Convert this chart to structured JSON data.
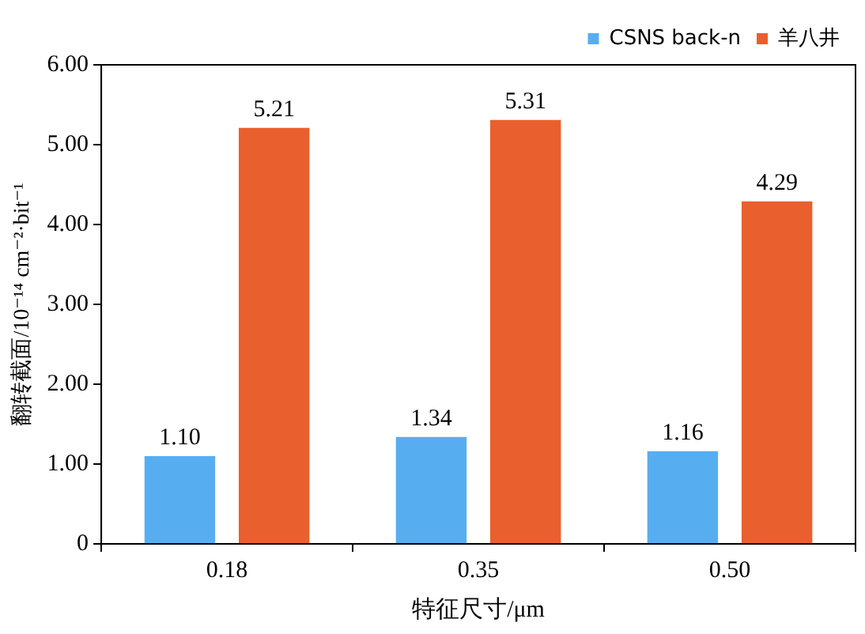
{
  "chart_data": {
    "type": "bar",
    "xlabel": "特征尺寸/μm",
    "ylabel": "翻转截面/10⁻¹⁴ cm⁻²·bit⁻¹",
    "categories": [
      "0.18",
      "0.35",
      "0.50"
    ],
    "series": [
      {
        "name": "CSNS back-n",
        "color": "#56aef0",
        "values": [
          1.1,
          1.34,
          1.16
        ],
        "value_labels": [
          "1.10",
          "1.34",
          "1.16"
        ]
      },
      {
        "name": "羊八井",
        "color": "#ea5f2e",
        "values": [
          5.21,
          5.31,
          4.29
        ],
        "value_labels": [
          "5.21",
          "5.31",
          "4.29"
        ]
      }
    ],
    "ylim": [
      0,
      6
    ],
    "yticks": [
      0,
      {
        "value": 1,
        "label": "1.00"
      },
      {
        "value": 2,
        "label": "2.00"
      },
      {
        "value": 3,
        "label": "3.00"
      },
      {
        "value": 4,
        "label": "4.00"
      },
      {
        "value": 5,
        "label": "5.00"
      },
      {
        "value": 6,
        "label": "6.00"
      }
    ],
    "grid": false,
    "legend": "top right"
  }
}
